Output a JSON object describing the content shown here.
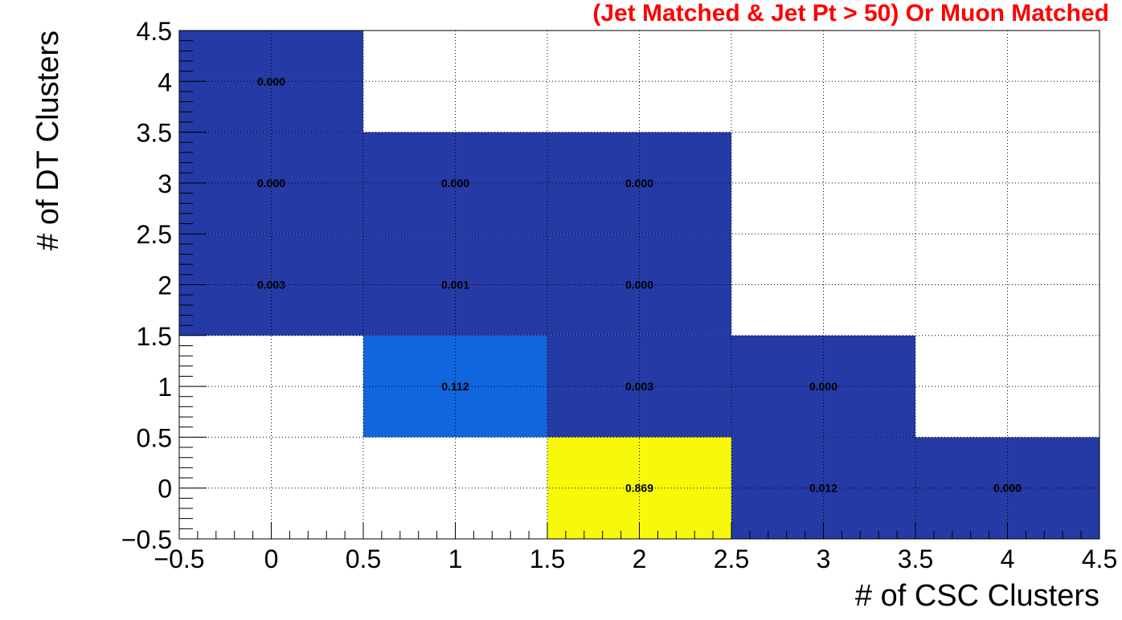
{
  "chart_data": {
    "type": "heatmap",
    "title": "(Jet Matched & Jet Pt > 50) Or Muon Matched",
    "xlabel": "# of CSC Clusters",
    "ylabel": "# of DT Clusters",
    "xlim": [
      -0.5,
      4.5
    ],
    "ylim": [
      -0.5,
      4.5
    ],
    "x_ticks": [
      "−0.5",
      "0",
      "0.5",
      "1",
      "1.5",
      "2",
      "2.5",
      "3",
      "3.5",
      "4",
      "4.5"
    ],
    "y_ticks": [
      "−0.5",
      "0",
      "0.5",
      "1",
      "1.5",
      "2",
      "2.5",
      "3",
      "3.5",
      "4",
      "4.5"
    ],
    "grid": true,
    "cells": [
      {
        "x": 0,
        "y": 4,
        "value": 0.0,
        "label": "0.000",
        "color": "#253aa5"
      },
      {
        "x": 0,
        "y": 3,
        "value": 0.0,
        "label": "0.000",
        "color": "#253aa5"
      },
      {
        "x": 1,
        "y": 3,
        "value": 0.0,
        "label": "0.000",
        "color": "#253aa5"
      },
      {
        "x": 2,
        "y": 3,
        "value": 0.0,
        "label": "0.000",
        "color": "#253aa5"
      },
      {
        "x": 0,
        "y": 2,
        "value": 0.003,
        "label": "0.003",
        "color": "#253aa5"
      },
      {
        "x": 1,
        "y": 2,
        "value": 0.001,
        "label": "0.001",
        "color": "#253aa5"
      },
      {
        "x": 2,
        "y": 2,
        "value": 0.0,
        "label": "0.000",
        "color": "#253aa5"
      },
      {
        "x": 1,
        "y": 1,
        "value": 0.112,
        "label": "0.112",
        "color": "#1165dd"
      },
      {
        "x": 2,
        "y": 1,
        "value": 0.003,
        "label": "0.003",
        "color": "#253aa5"
      },
      {
        "x": 3,
        "y": 1,
        "value": 0.0,
        "label": "0.000",
        "color": "#253aa5"
      },
      {
        "x": 2,
        "y": 0,
        "value": 0.869,
        "label": "0.869",
        "color": "#f8f80b"
      },
      {
        "x": 3,
        "y": 0,
        "value": 0.012,
        "label": "0.012",
        "color": "#253aa5"
      },
      {
        "x": 4,
        "y": 0,
        "value": 0.0,
        "label": "0.000",
        "color": "#253aa5"
      }
    ]
  }
}
